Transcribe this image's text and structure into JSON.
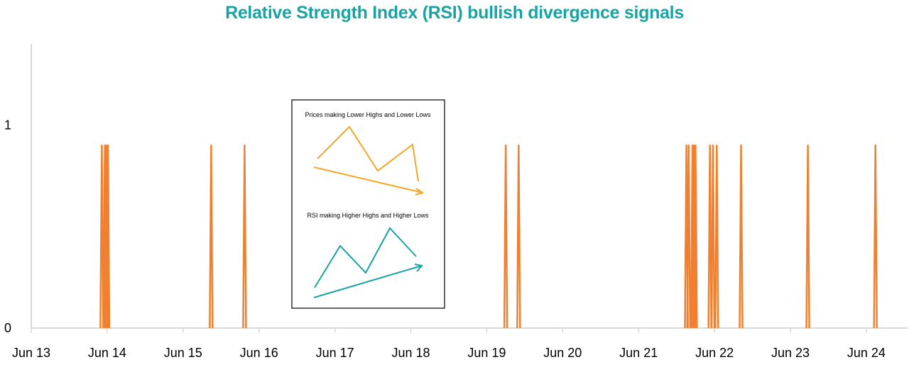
{
  "chart_data": {
    "type": "line",
    "title": "Relative Strength Index (RSI) bullish divergence signals",
    "xlabel": "",
    "ylabel": "",
    "x_ticks": [
      "Jun 13",
      "Jun 14",
      "Jun 15",
      "Jun 16",
      "Jun 17",
      "Jun 18",
      "Jun 19",
      "Jun 20",
      "Jun 21",
      "Jun 22",
      "Jun 23",
      "Jun 24"
    ],
    "y_ticks": [
      "0",
      "1"
    ],
    "ylim": [
      0,
      1.4
    ],
    "xlim_days": [
      0,
      11.6
    ],
    "grid": false,
    "legend": "none",
    "series_color": "#f08030",
    "signal_value": 0.9,
    "signals_days": [
      0.93,
      0.97,
      0.99,
      1.01,
      2.37,
      2.81,
      6.25,
      6.42,
      8.63,
      8.66,
      8.71,
      8.73,
      8.75,
      8.94,
      8.98,
      9.03,
      9.35,
      10.23,
      11.12
    ]
  },
  "inset": {
    "price_caption": "Prices making Lower Highs and Lower Lows",
    "rsi_caption": "RSI making Higher Highs and Higher Lows",
    "price_color": "#f5a623",
    "rsi_color": "#1aa3a3"
  }
}
